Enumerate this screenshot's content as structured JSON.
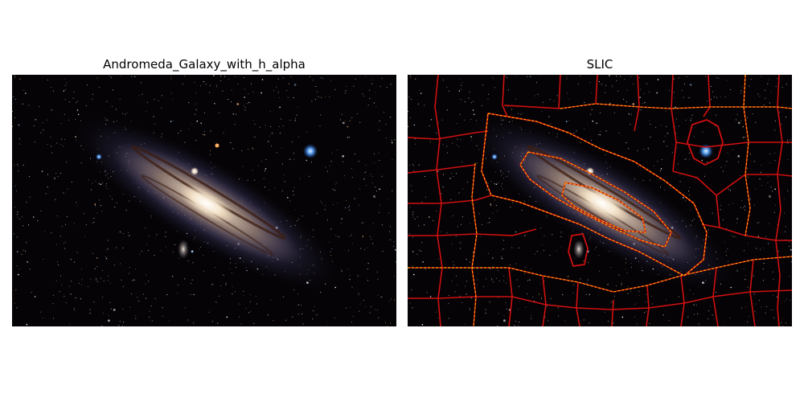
{
  "figure": {
    "panels": [
      {
        "title": "Andromeda_Galaxy_with_h_alpha",
        "kind": "original-image"
      },
      {
        "title": "SLIC",
        "kind": "superpixel-segmentation-overlay"
      }
    ],
    "colors": {
      "background": "#ffffff",
      "sky": "#050305",
      "galaxy_core": "#f6ead8",
      "galaxy_disk": "#a98d72",
      "galaxy_halo": "#54507c",
      "dust_lane": "#3b1c10",
      "boundary_outer": "#d01010",
      "boundary_inner": "#ffd400",
      "bright_star": "#5aa8ff"
    }
  }
}
